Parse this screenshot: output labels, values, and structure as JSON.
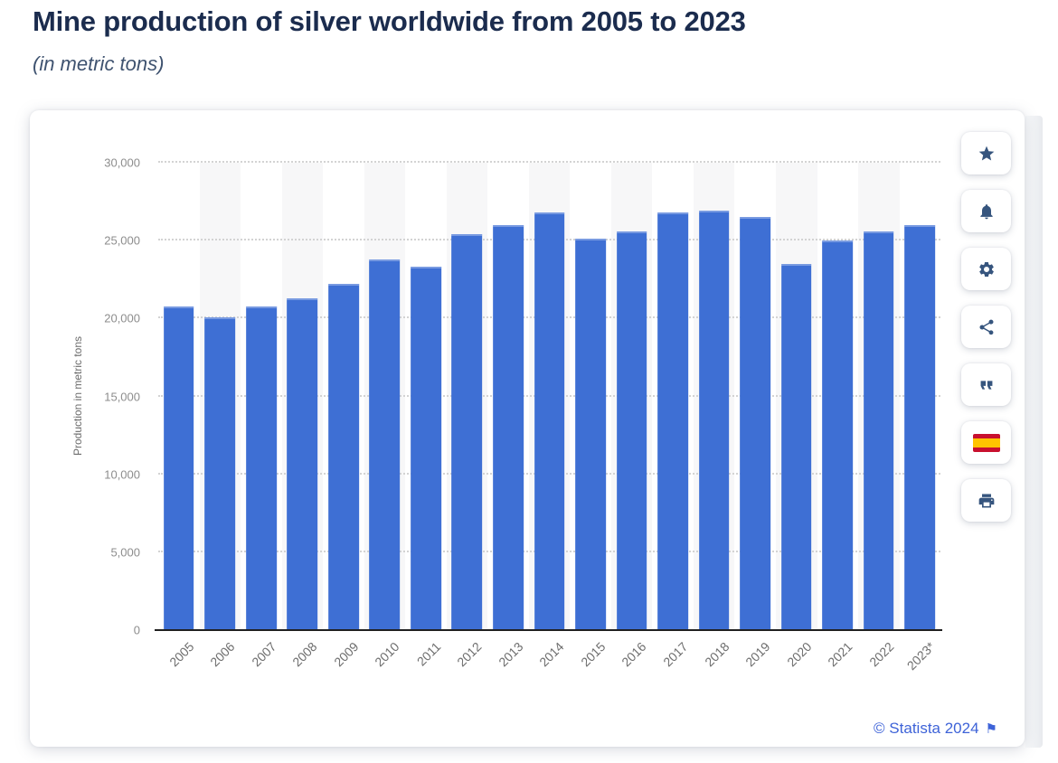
{
  "page": {
    "title": "Mine production of silver worldwide from 2005 to 2023",
    "subtitle": "(in metric tons)",
    "copyright_label": "© Statista 2024",
    "report_flag_glyph": "⚑",
    "colors": {
      "bar_blue": "#3e6fd4",
      "link_blue": "#3e63d8",
      "title_navy": "#1b2c4e",
      "icon_slate": "#36557e",
      "stripe_gray": "#f7f7f8"
    }
  },
  "chart_data": {
    "type": "bar",
    "title": "Mine production of silver worldwide from 2005 to 2023",
    "subtitle": "(in metric tons)",
    "xlabel": "",
    "ylabel": "Production in metric tons",
    "ylim": [
      0,
      30000
    ],
    "yticks": [
      0,
      5000,
      10000,
      15000,
      20000,
      25000,
      30000
    ],
    "ytick_labels": [
      "0",
      "5,000",
      "10,000",
      "15,000",
      "20,000",
      "25,000",
      "30,000"
    ],
    "grid": "horizontal-dotted",
    "legend": false,
    "alt_column_stripes": true,
    "categories": [
      "2005",
      "2006",
      "2007",
      "2008",
      "2009",
      "2010",
      "2011",
      "2012",
      "2013",
      "2014",
      "2015",
      "2016",
      "2017",
      "2018",
      "2019",
      "2020",
      "2021",
      "2022",
      "2023*"
    ],
    "values": [
      20800,
      20100,
      20800,
      21300,
      22200,
      23800,
      23300,
      25400,
      26000,
      26800,
      25100,
      25600,
      26800,
      26900,
      26500,
      23500,
      25000,
      25600,
      26000
    ]
  },
  "toolbar": {
    "buttons": [
      {
        "name": "favorite",
        "icon": "star-icon"
      },
      {
        "name": "alerts",
        "icon": "bell-icon"
      },
      {
        "name": "settings",
        "icon": "gear-icon"
      },
      {
        "name": "share",
        "icon": "share-icon"
      },
      {
        "name": "cite",
        "icon": "quote-icon"
      },
      {
        "name": "language-spanish",
        "icon": "spain-flag-icon"
      },
      {
        "name": "print",
        "icon": "printer-icon"
      }
    ]
  }
}
